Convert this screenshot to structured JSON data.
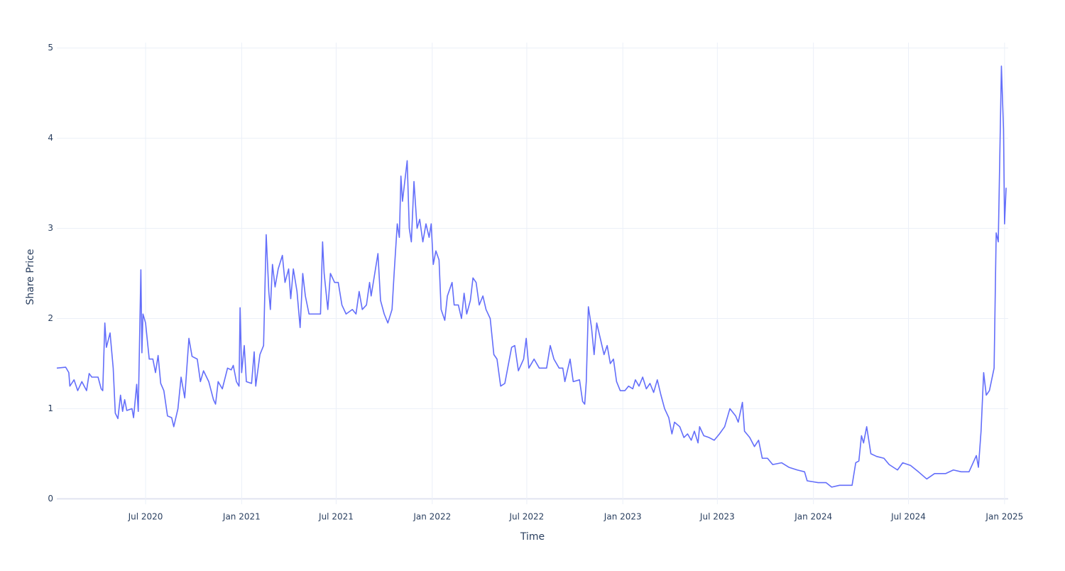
{
  "chart_data": {
    "type": "line",
    "x_label": "Time",
    "y_label": "Share Price",
    "grid": true,
    "xlim": [
      "2020-01-13",
      "2025-01-08"
    ],
    "xticks": [
      {
        "value": "2020-07-01",
        "label": "Jul 2020"
      },
      {
        "value": "2021-01-01",
        "label": "Jan 2021"
      },
      {
        "value": "2021-07-01",
        "label": "Jul 2021"
      },
      {
        "value": "2022-01-01",
        "label": "Jan 2022"
      },
      {
        "value": "2022-07-01",
        "label": "Jul 2022"
      },
      {
        "value": "2023-01-01",
        "label": "Jan 2023"
      },
      {
        "value": "2023-07-01",
        "label": "Jul 2023"
      },
      {
        "value": "2024-01-01",
        "label": "Jan 2024"
      },
      {
        "value": "2024-07-01",
        "label": "Jul 2024"
      },
      {
        "value": "2025-01-01",
        "label": "Jan 2025"
      }
    ],
    "ylim": [
      -0.06,
      5.06
    ],
    "yticks": [
      0,
      1,
      2,
      3,
      4,
      5
    ],
    "x": [
      "2020-01-13",
      "2020-01-30",
      "2020-02-05",
      "2020-02-07",
      "2020-02-15",
      "2020-02-22",
      "2020-03-01",
      "2020-03-10",
      "2020-03-15",
      "2020-03-20",
      "2020-04-01",
      "2020-04-07",
      "2020-04-10",
      "2020-04-14",
      "2020-04-17",
      "2020-04-24",
      "2020-04-30",
      "2020-05-04",
      "2020-05-09",
      "2020-05-14",
      "2020-05-18",
      "2020-05-22",
      "2020-05-26",
      "2020-06-05",
      "2020-06-08",
      "2020-06-14",
      "2020-06-17",
      "2020-06-22",
      "2020-06-24",
      "2020-06-26",
      "2020-07-01",
      "2020-07-08",
      "2020-07-15",
      "2020-07-20",
      "2020-07-25",
      "2020-07-30",
      "2020-08-05",
      "2020-08-12",
      "2020-08-20",
      "2020-08-24",
      "2020-09-01",
      "2020-09-07",
      "2020-09-14",
      "2020-09-22",
      "2020-09-28",
      "2020-10-08",
      "2020-10-14",
      "2020-10-20",
      "2020-10-30",
      "2020-11-08",
      "2020-11-12",
      "2020-11-17",
      "2020-11-25",
      "2020-12-05",
      "2020-12-12",
      "2020-12-16",
      "2020-12-22",
      "2020-12-27",
      "2020-12-29",
      "2021-01-01",
      "2021-01-06",
      "2021-01-10",
      "2021-01-20",
      "2021-01-25",
      "2021-01-28",
      "2021-02-05",
      "2021-02-12",
      "2021-02-17",
      "2021-02-22",
      "2021-02-25",
      "2021-03-01",
      "2021-03-06",
      "2021-03-12",
      "2021-03-20",
      "2021-03-25",
      "2021-04-01",
      "2021-04-05",
      "2021-04-10",
      "2021-04-17",
      "2021-04-23",
      "2021-04-28",
      "2021-05-03",
      "2021-05-10",
      "2021-05-20",
      "2021-06-01",
      "2021-06-05",
      "2021-06-08",
      "2021-06-15",
      "2021-06-20",
      "2021-06-28",
      "2021-07-05",
      "2021-07-12",
      "2021-07-20",
      "2021-08-01",
      "2021-08-08",
      "2021-08-14",
      "2021-08-20",
      "2021-08-28",
      "2021-09-03",
      "2021-09-06",
      "2021-09-19",
      "2021-09-24",
      "2021-10-01",
      "2021-10-08",
      "2021-10-16",
      "2021-10-20",
      "2021-10-26",
      "2021-10-30",
      "2021-11-02",
      "2021-11-05",
      "2021-11-14",
      "2021-11-18",
      "2021-11-22",
      "2021-11-27",
      "2021-12-03",
      "2021-12-08",
      "2021-12-14",
      "2021-12-20",
      "2021-12-26",
      "2021-12-30",
      "2022-01-03",
      "2022-01-08",
      "2022-01-14",
      "2022-01-18",
      "2022-01-25",
      "2022-01-30",
      "2022-02-08",
      "2022-02-12",
      "2022-02-20",
      "2022-02-26",
      "2022-03-03",
      "2022-03-08",
      "2022-03-15",
      "2022-03-20",
      "2022-03-26",
      "2022-04-01",
      "2022-04-08",
      "2022-04-14",
      "2022-04-22",
      "2022-04-29",
      "2022-05-05",
      "2022-05-12",
      "2022-05-20",
      "2022-06-02",
      "2022-06-08",
      "2022-06-15",
      "2022-06-25",
      "2022-06-30",
      "2022-07-05",
      "2022-07-15",
      "2022-07-25",
      "2022-08-08",
      "2022-08-15",
      "2022-08-22",
      "2022-09-01",
      "2022-09-08",
      "2022-09-12",
      "2022-09-22",
      "2022-09-28",
      "2022-10-10",
      "2022-10-16",
      "2022-10-20",
      "2022-10-23",
      "2022-10-27",
      "2022-11-02",
      "2022-11-07",
      "2022-11-12",
      "2022-11-20",
      "2022-11-26",
      "2022-12-02",
      "2022-12-08",
      "2022-12-14",
      "2022-12-20",
      "2022-12-27",
      "2023-01-05",
      "2023-01-12",
      "2023-01-20",
      "2023-01-25",
      "2023-02-01",
      "2023-02-08",
      "2023-02-15",
      "2023-02-22",
      "2023-03-01",
      "2023-03-08",
      "2023-03-15",
      "2023-03-22",
      "2023-03-30",
      "2023-04-05",
      "2023-04-10",
      "2023-04-20",
      "2023-04-28",
      "2023-05-05",
      "2023-05-12",
      "2023-05-18",
      "2023-05-25",
      "2023-05-28",
      "2023-06-05",
      "2023-06-15",
      "2023-06-25",
      "2023-07-05",
      "2023-07-15",
      "2023-07-25",
      "2023-08-05",
      "2023-08-10",
      "2023-08-18",
      "2023-08-22",
      "2023-09-01",
      "2023-09-10",
      "2023-09-18",
      "2023-09-25",
      "2023-10-05",
      "2023-10-15",
      "2023-11-01",
      "2023-11-15",
      "2023-12-01",
      "2023-12-15",
      "2023-12-20",
      "2024-01-10",
      "2024-01-25",
      "2024-02-05",
      "2024-02-20",
      "2024-03-10",
      "2024-03-15",
      "2024-03-22",
      "2024-03-28",
      "2024-04-02",
      "2024-04-06",
      "2024-04-12",
      "2024-04-20",
      "2024-05-01",
      "2024-05-15",
      "2024-05-25",
      "2024-06-10",
      "2024-06-20",
      "2024-07-05",
      "2024-07-20",
      "2024-08-05",
      "2024-08-20",
      "2024-09-10",
      "2024-09-25",
      "2024-10-10",
      "2024-10-25",
      "2024-11-08",
      "2024-11-12",
      "2024-11-17",
      "2024-11-22",
      "2024-11-27",
      "2024-12-03",
      "2024-12-12",
      "2024-12-16",
      "2024-12-20",
      "2024-12-26",
      "2024-12-30",
      "2025-01-01",
      "2025-01-04"
    ],
    "series": [
      {
        "color": "#636efa",
        "values": [
          1.45,
          1.46,
          1.4,
          1.25,
          1.32,
          1.2,
          1.3,
          1.2,
          1.39,
          1.35,
          1.35,
          1.22,
          1.2,
          1.95,
          1.68,
          1.84,
          1.45,
          0.95,
          0.89,
          1.15,
          0.97,
          1.1,
          0.98,
          1.0,
          0.9,
          1.27,
          0.97,
          2.54,
          1.62,
          2.05,
          1.95,
          1.55,
          1.55,
          1.4,
          1.59,
          1.28,
          1.2,
          0.92,
          0.9,
          0.8,
          1.0,
          1.35,
          1.12,
          1.78,
          1.58,
          1.55,
          1.3,
          1.42,
          1.3,
          1.1,
          1.05,
          1.3,
          1.22,
          1.45,
          1.43,
          1.48,
          1.3,
          1.25,
          2.12,
          1.4,
          1.7,
          1.3,
          1.28,
          1.63,
          1.25,
          1.6,
          1.7,
          2.93,
          2.3,
          2.1,
          2.6,
          2.35,
          2.55,
          2.7,
          2.4,
          2.55,
          2.22,
          2.55,
          2.3,
          1.9,
          2.5,
          2.25,
          2.05,
          2.05,
          2.05,
          2.85,
          2.5,
          2.1,
          2.5,
          2.4,
          2.4,
          2.15,
          2.05,
          2.1,
          2.05,
          2.3,
          2.1,
          2.15,
          2.4,
          2.25,
          2.72,
          2.2,
          2.05,
          1.95,
          2.1,
          2.5,
          3.05,
          2.9,
          3.58,
          3.3,
          3.75,
          3.0,
          2.85,
          3.52,
          3.0,
          3.1,
          2.85,
          3.05,
          2.9,
          3.05,
          2.6,
          2.75,
          2.65,
          2.1,
          1.98,
          2.25,
          2.4,
          2.15,
          2.15,
          2.0,
          2.28,
          2.05,
          2.2,
          2.45,
          2.4,
          2.15,
          2.25,
          2.1,
          2.0,
          1.6,
          1.55,
          1.25,
          1.28,
          1.68,
          1.7,
          1.42,
          1.55,
          1.78,
          1.45,
          1.55,
          1.45,
          1.45,
          1.7,
          1.55,
          1.45,
          1.45,
          1.3,
          1.55,
          1.3,
          1.32,
          1.08,
          1.05,
          1.3,
          2.13,
          1.9,
          1.6,
          1.95,
          1.75,
          1.6,
          1.7,
          1.5,
          1.55,
          1.3,
          1.2,
          1.2,
          1.25,
          1.22,
          1.32,
          1.25,
          1.35,
          1.22,
          1.28,
          1.18,
          1.32,
          1.15,
          1.0,
          0.9,
          0.72,
          0.85,
          0.8,
          0.68,
          0.72,
          0.65,
          0.75,
          0.62,
          0.8,
          0.7,
          0.68,
          0.65,
          0.72,
          0.8,
          1.0,
          0.92,
          0.85,
          1.07,
          0.75,
          0.68,
          0.58,
          0.65,
          0.45,
          0.45,
          0.38,
          0.4,
          0.35,
          0.32,
          0.3,
          0.2,
          0.18,
          0.18,
          0.13,
          0.15,
          0.15,
          0.15,
          0.4,
          0.42,
          0.7,
          0.62,
          0.8,
          0.5,
          0.47,
          0.45,
          0.38,
          0.32,
          0.4,
          0.37,
          0.3,
          0.22,
          0.28,
          0.28,
          0.32,
          0.3,
          0.3,
          0.48,
          0.35,
          0.75,
          1.4,
          1.15,
          1.2,
          1.45,
          2.95,
          2.85,
          4.8,
          4.1,
          3.05,
          3.45
        ]
      }
    ]
  }
}
